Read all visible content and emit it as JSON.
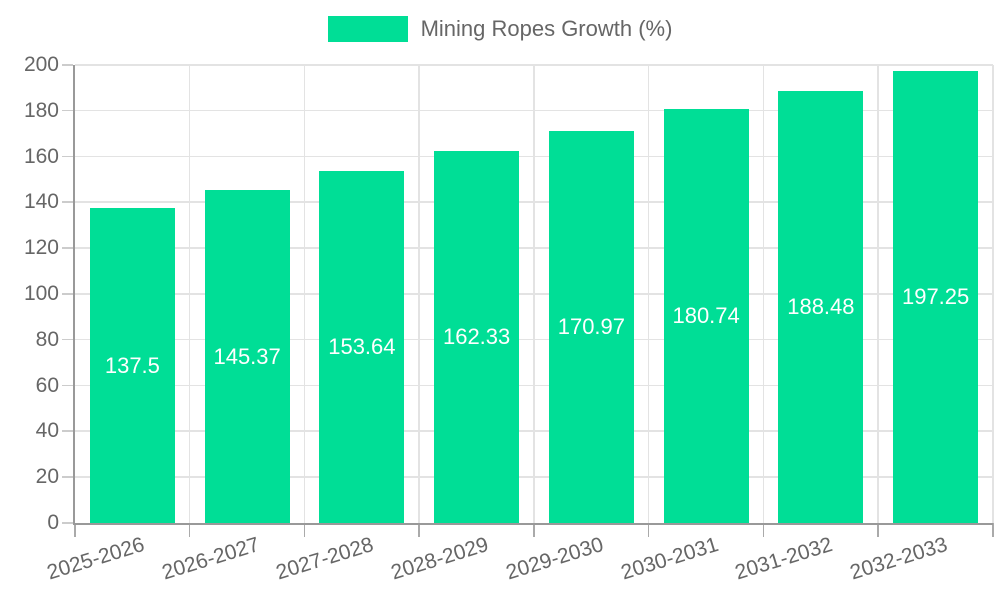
{
  "chart_data": {
    "type": "bar",
    "title": "",
    "categories": [
      "2025-2026",
      "2026-2027",
      "2027-2028",
      "2028-2029",
      "2029-2030",
      "2030-2031",
      "2031-2032",
      "2032-2033"
    ],
    "series": [
      {
        "name": "Mining Ropes Growth (%)",
        "color": "#00DE96",
        "values": [
          137.5,
          145.37,
          153.64,
          162.33,
          170.97,
          180.74,
          188.48,
          197.25
        ]
      }
    ],
    "xlabel": "",
    "ylabel": "",
    "ylim": [
      0,
      200
    ],
    "ytick_step": 20,
    "grid": true,
    "legend_position": "top-center",
    "x_label_rotation": -17,
    "value_labels": {
      "show": true,
      "position": "center-inside"
    },
    "colors": {
      "accent": "#00DE96",
      "axis": "#999999",
      "grid": "#e3e3e3",
      "tick_y": "#cccccc",
      "tick_x": "#aaaaaa",
      "tick_label": "#666666",
      "legend_text": "#666666",
      "value_label": "#ffffff"
    }
  }
}
